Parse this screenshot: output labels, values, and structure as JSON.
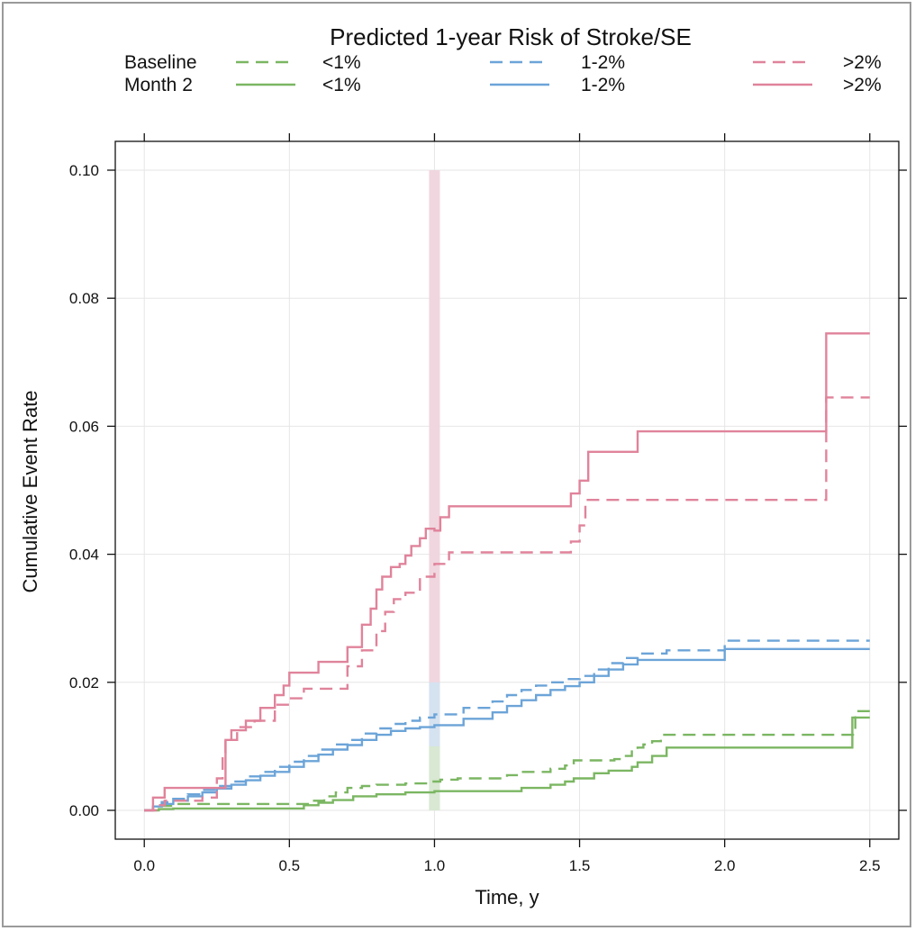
{
  "chart_data": {
    "type": "line",
    "title": "Predicted 1-year Risk of Stroke/SE",
    "xlabel": "Time, y",
    "ylabel": "Cumulative Event Rate",
    "xlim": [
      -0.1,
      2.6
    ],
    "ylim": [
      -0.0045,
      0.1045
    ],
    "xticks": [
      "0.0",
      "0.5",
      "1.0",
      "1.5",
      "2.0",
      "2.5"
    ],
    "yticks": [
      "0.00",
      "0.02",
      "0.04",
      "0.06",
      "0.08",
      "0.10"
    ],
    "grid": true,
    "legend": {
      "position": "top",
      "row_labels": [
        "Baseline",
        "Month 2"
      ],
      "column_labels": [
        "<1%",
        "1-2%",
        ">2%"
      ]
    },
    "highlight": {
      "x": 1.0,
      "bands": [
        {
          "color": "#f0d6df",
          "y": [
            0.0,
            0.1
          ]
        },
        {
          "color": "#d5e2f0",
          "y": [
            0.0,
            0.02
          ]
        },
        {
          "color": "#d8e8d2",
          "y": [
            0.0,
            0.01
          ]
        }
      ]
    },
    "series": [
      {
        "group": "<1%",
        "timepoint": "Baseline",
        "style": "dashed",
        "color": "#7bb662",
        "x": [
          0,
          0.03,
          0.05,
          0.1,
          0.2,
          0.3,
          0.55,
          0.58,
          0.62,
          0.66,
          0.7,
          0.75,
          0.8,
          0.9,
          0.98,
          1.02,
          1.08,
          1.25,
          1.3,
          1.4,
          1.45,
          1.48,
          1.62,
          1.65,
          1.68,
          1.7,
          1.72,
          1.75,
          1.78,
          2.0,
          2.42,
          2.45,
          2.5
        ],
        "y": [
          0,
          0.0005,
          0.0007,
          0.001,
          0.001,
          0.001,
          0.001,
          0.0015,
          0.0022,
          0.0028,
          0.0035,
          0.0038,
          0.004,
          0.0042,
          0.0045,
          0.0048,
          0.005,
          0.0055,
          0.006,
          0.0065,
          0.007,
          0.0078,
          0.008,
          0.0085,
          0.0092,
          0.0098,
          0.0103,
          0.0108,
          0.0118,
          0.0118,
          0.0118,
          0.0155,
          0.0155
        ]
      },
      {
        "group": "<1%",
        "timepoint": "Month 2",
        "style": "solid",
        "color": "#7bb662",
        "x": [
          0,
          0.05,
          0.1,
          0.3,
          0.55,
          0.6,
          0.65,
          0.72,
          0.8,
          0.9,
          1.0,
          1.1,
          1.3,
          1.4,
          1.45,
          1.48,
          1.55,
          1.6,
          1.68,
          1.7,
          1.75,
          1.8,
          2.0,
          2.42,
          2.44,
          2.5
        ],
        "y": [
          0,
          0.0002,
          0.0003,
          0.0003,
          0.0008,
          0.0012,
          0.0016,
          0.0022,
          0.0025,
          0.0028,
          0.003,
          0.003,
          0.0035,
          0.004,
          0.0045,
          0.005,
          0.0058,
          0.0062,
          0.0068,
          0.0075,
          0.0085,
          0.0098,
          0.0098,
          0.0098,
          0.0145,
          0.0145
        ]
      },
      {
        "group": "1-2%",
        "timepoint": "Baseline",
        "style": "dashed",
        "color": "#6ca4d8",
        "x": [
          0,
          0.03,
          0.06,
          0.1,
          0.15,
          0.2,
          0.25,
          0.3,
          0.35,
          0.4,
          0.45,
          0.5,
          0.55,
          0.6,
          0.65,
          0.7,
          0.75,
          0.8,
          0.85,
          0.9,
          0.95,
          1.0,
          1.1,
          1.2,
          1.25,
          1.3,
          1.35,
          1.4,
          1.45,
          1.5,
          1.55,
          1.6,
          1.65,
          1.7,
          1.8,
          2.0,
          2.5
        ],
        "y": [
          0,
          0.0008,
          0.0013,
          0.0018,
          0.0025,
          0.0032,
          0.0038,
          0.0045,
          0.0053,
          0.006,
          0.0068,
          0.0076,
          0.0085,
          0.0095,
          0.0103,
          0.011,
          0.012,
          0.0128,
          0.0135,
          0.014,
          0.0145,
          0.015,
          0.016,
          0.017,
          0.018,
          0.0188,
          0.0195,
          0.02,
          0.0205,
          0.021,
          0.022,
          0.023,
          0.0238,
          0.0245,
          0.025,
          0.0265,
          0.0265
        ]
      },
      {
        "group": "1-2%",
        "timepoint": "Month 2",
        "style": "solid",
        "color": "#6ca4d8",
        "x": [
          0,
          0.03,
          0.06,
          0.1,
          0.15,
          0.2,
          0.25,
          0.3,
          0.35,
          0.4,
          0.45,
          0.5,
          0.55,
          0.6,
          0.65,
          0.7,
          0.75,
          0.8,
          0.85,
          0.9,
          0.95,
          1.0,
          1.1,
          1.2,
          1.25,
          1.3,
          1.35,
          1.4,
          1.45,
          1.5,
          1.55,
          1.6,
          1.65,
          1.7,
          1.8,
          2.0,
          2.5
        ],
        "y": [
          0,
          0.0006,
          0.001,
          0.0015,
          0.0022,
          0.0028,
          0.0034,
          0.004,
          0.0047,
          0.0054,
          0.006,
          0.0068,
          0.0077,
          0.0087,
          0.0095,
          0.0102,
          0.011,
          0.0118,
          0.0124,
          0.0128,
          0.013,
          0.0133,
          0.0143,
          0.0153,
          0.0163,
          0.0172,
          0.018,
          0.0188,
          0.0194,
          0.02,
          0.021,
          0.022,
          0.0228,
          0.0235,
          0.0235,
          0.0252,
          0.0252
        ]
      },
      {
        "group": ">2%",
        "timepoint": "Baseline",
        "style": "dashed",
        "color": "#e0839b",
        "x": [
          0,
          0.04,
          0.07,
          0.2,
          0.25,
          0.27,
          0.28,
          0.32,
          0.38,
          0.45,
          0.5,
          0.55,
          0.7,
          0.75,
          0.8,
          0.83,
          0.86,
          0.9,
          0.95,
          1.0,
          1.05,
          1.45,
          1.47,
          1.5,
          1.52,
          1.55,
          2.0,
          2.35,
          2.5
        ],
        "y": [
          0,
          0.0008,
          0.0015,
          0.002,
          0.005,
          0.009,
          0.011,
          0.013,
          0.014,
          0.0165,
          0.0175,
          0.019,
          0.0225,
          0.025,
          0.028,
          0.031,
          0.033,
          0.034,
          0.0365,
          0.0385,
          0.0403,
          0.0403,
          0.042,
          0.0445,
          0.0485,
          0.0485,
          0.0485,
          0.0645,
          0.0645
        ]
      },
      {
        "group": ">2%",
        "timepoint": "Month 2",
        "style": "solid",
        "color": "#e0839b",
        "x": [
          0,
          0.03,
          0.07,
          0.2,
          0.25,
          0.28,
          0.3,
          0.35,
          0.4,
          0.45,
          0.48,
          0.5,
          0.55,
          0.6,
          0.7,
          0.75,
          0.78,
          0.8,
          0.82,
          0.85,
          0.88,
          0.9,
          0.92,
          0.95,
          0.97,
          1.0,
          1.02,
          1.05,
          1.45,
          1.47,
          1.5,
          1.53,
          1.6,
          1.7,
          2.0,
          2.35,
          2.5
        ],
        "y": [
          0,
          0.002,
          0.0035,
          0.0035,
          0.0035,
          0.011,
          0.0125,
          0.014,
          0.016,
          0.018,
          0.0195,
          0.0215,
          0.0215,
          0.0232,
          0.0255,
          0.029,
          0.0315,
          0.0345,
          0.0365,
          0.038,
          0.0385,
          0.0398,
          0.0413,
          0.0425,
          0.044,
          0.0437,
          0.0458,
          0.0475,
          0.0475,
          0.0495,
          0.0515,
          0.056,
          0.056,
          0.0592,
          0.0592,
          0.0745,
          0.0745
        ]
      }
    ]
  }
}
